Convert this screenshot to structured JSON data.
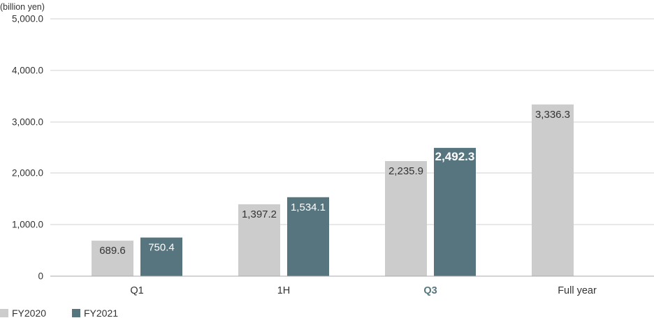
{
  "chart_data": {
    "type": "bar",
    "ylabel": "(billion yen)",
    "ylim": [
      0,
      5000
    ],
    "yticks": [
      0,
      1000,
      2000,
      3000,
      4000,
      5000
    ],
    "ytick_labels": [
      "0",
      "1,000.0",
      "2,000.0",
      "3,000.0",
      "4,000.0",
      "5,000.0"
    ],
    "grid": true,
    "categories": [
      "Q1",
      "1H",
      "Q3",
      "Full year"
    ],
    "series": [
      {
        "name": "FY2020",
        "color": "#cccccc",
        "label_color": "#333333",
        "values": [
          689.6,
          1397.2,
          2235.9,
          3336.3
        ],
        "labels": [
          "689.6",
          "1,397.2",
          "2,235.9",
          "3,336.3"
        ]
      },
      {
        "name": "FY2021",
        "color": "#56757f",
        "label_color": "#ffffff",
        "values": [
          750.4,
          1534.1,
          2492.3,
          null
        ],
        "labels": [
          "750.4",
          "1,534.1",
          "2,492.3",
          null
        ]
      }
    ],
    "highlight": {
      "category_index": 2,
      "series_index": 1,
      "color": "#56757f"
    },
    "legend": {
      "placement": "bottom-left"
    }
  }
}
